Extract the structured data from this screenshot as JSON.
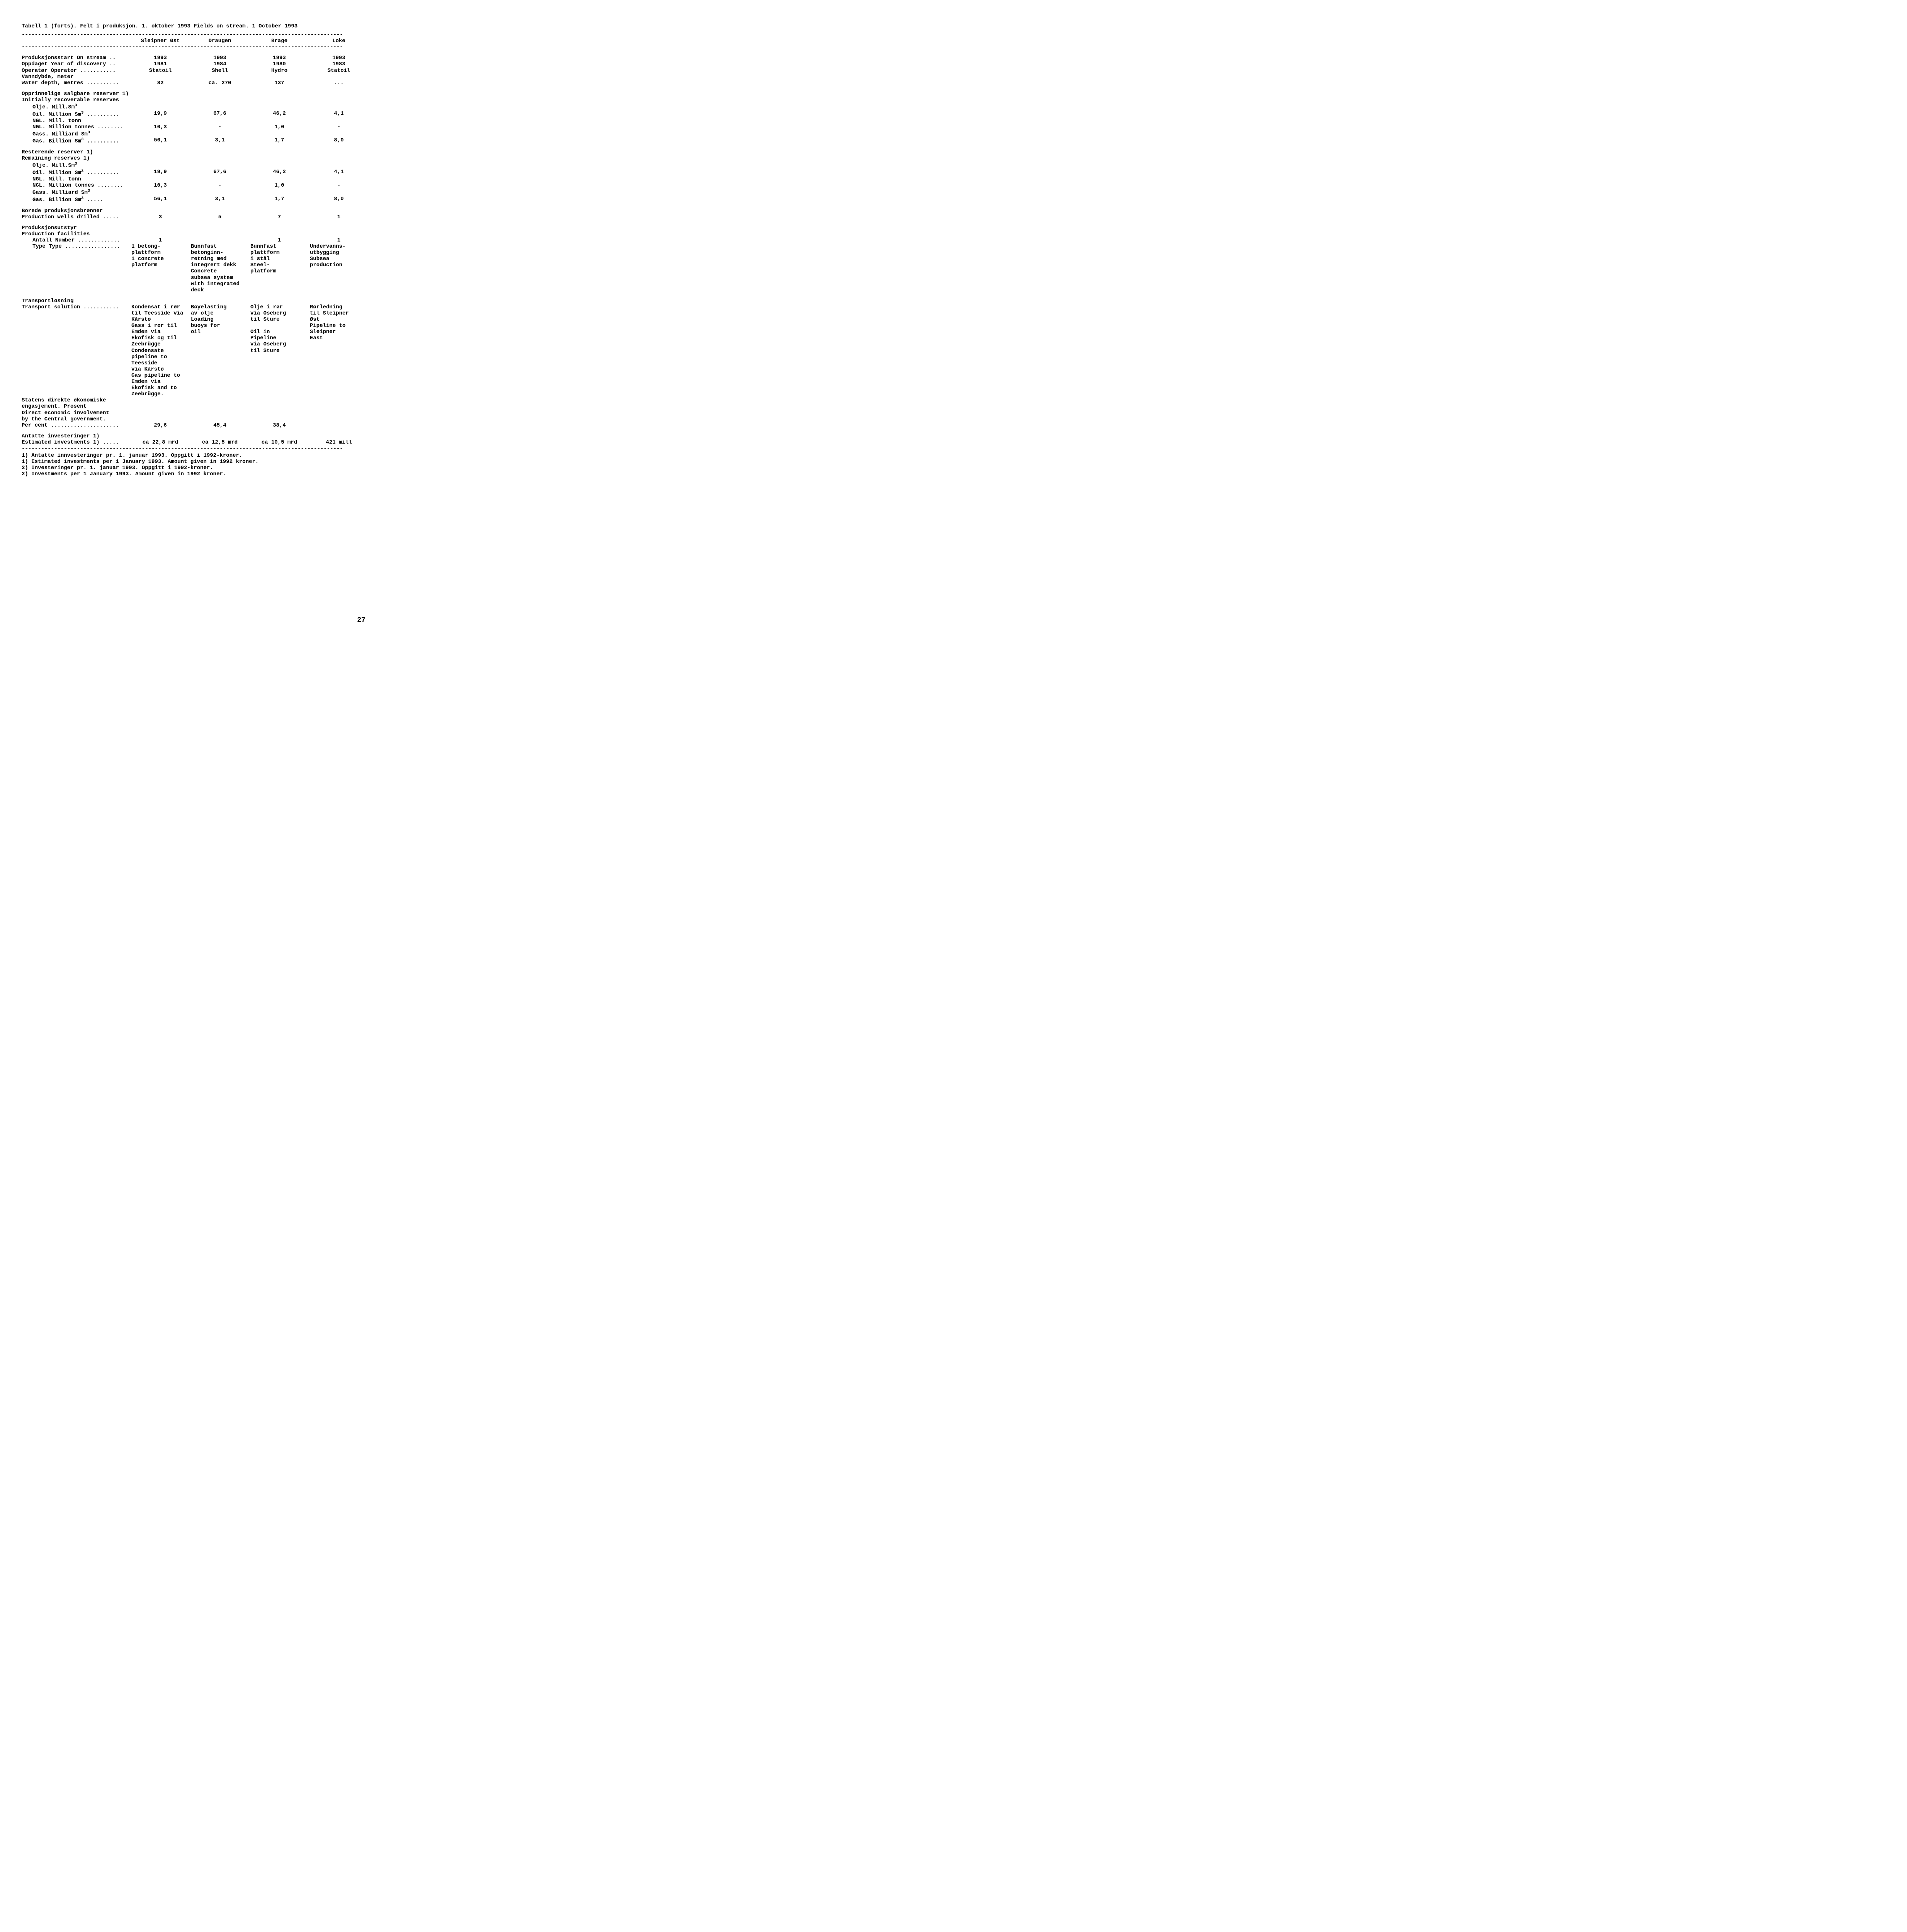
{
  "page_number": "27",
  "title": "Tabell 1 (forts).  Felt i produksjon. 1. oktober 1993  Fields on stream. 1 October 1993",
  "rule": "---------------------------------------------------------------------------------------------------",
  "headers": {
    "col1": "Sleipner Øst",
    "col2": "Draugen",
    "col3": "Brage",
    "col4": "Loke"
  },
  "rows": {
    "on_stream_lbl": "Produksjonsstart  On stream ..",
    "on_stream": {
      "c1": "1993",
      "c2": "1993",
      "c3": "1993",
      "c4": "1993"
    },
    "discovery_lbl": "Oppdaget  Year of discovery ..",
    "discovery": {
      "c1": "1981",
      "c2": "1984",
      "c3": "1980",
      "c4": "1983"
    },
    "operator_lbl": "Operatør  Operator ...........",
    "operator": {
      "c1": "Statoil",
      "c2": "Shell",
      "c3": "Hydro",
      "c4": "Statoil"
    },
    "depth_no": "Vanndybde, meter",
    "depth_lbl": "Water depth, metres ..........",
    "depth": {
      "c1": "82",
      "c2": "ca. 270",
      "c3": "137",
      "c4": "..."
    },
    "init_reserves_no": "Opprinnelige salgbare reserver 1)",
    "init_reserves_en": "Initially recoverable reserves",
    "oil_no": "Olje. Mill.Sm",
    "oil_lbl": "Oil. Million Sm",
    "oil_dots": " ..........",
    "oil_init": {
      "c1": "19,9",
      "c2": "67,6",
      "c3": "46,2",
      "c4": "4,1"
    },
    "ngl_no": "NGL. Mill. tonn",
    "ngl_lbl": "NGL. Million tonnes ........",
    "ngl_init": {
      "c1": "10,3",
      "c2": "-",
      "c3": "1,0",
      "c4": "-"
    },
    "gas_no": "Gass. Milliard Sm",
    "gas_lbl": "Gas. Billion Sm",
    "gas_dots": " ..........",
    "gas_init": {
      "c1": "56,1",
      "c2": "3,1",
      "c3": "1,7",
      "c4": "8,0"
    },
    "rem_reserves_no": "Resterende reserver 1)",
    "rem_reserves_en": "Remaining reserves 1)",
    "oil_rem": {
      "c1": "19,9",
      "c2": "67,6",
      "c3": "46,2",
      "c4": "4,1"
    },
    "ngl_rem": {
      "c1": "10,3",
      "c2": "-",
      "c3": "1,0",
      "c4": "-"
    },
    "gas_rem_dots": " .....",
    "gas_rem": {
      "c1": "56,1",
      "c2": "3,1",
      "c3": "1,7",
      "c4": "8,0"
    },
    "wells_no": "Borede produksjonsbrønner",
    "wells_lbl": "Production wells drilled .....",
    "wells": {
      "c1": "3",
      "c2": "5",
      "c3": "7",
      "c4": "1"
    },
    "facil_no": "Produksjonsutstyr",
    "facil_en": "Production facilities",
    "num_lbl": "Antall  Number .............",
    "num": {
      "c1": "1",
      "c2": "",
      "c3": "1",
      "c4": "1"
    },
    "type_lbl": "Type  Type .................",
    "type": {
      "c1": "1 betong-\nplattform\n1 concrete\nplatform",
      "c2": "Bunnfast\nbetonginn-\nretning med\nintegrert dekk\nConcrete\nsubsea system\nwith integrated\ndeck",
      "c3": "Bunnfast\nplattform\ni stål\nSteel-\nplatform",
      "c4": "Undervanns-\nutbygging\nSubsea\nproduction"
    },
    "trans_no": "Transportløsning",
    "trans_lbl": "Transport solution ...........",
    "trans": {
      "c1": "Kondensat i rør\ntil Teesside via\nKårstø\nGass i rør til\nEmden via\nEkofisk og til\nZeebrügge\nCondensate\npipeline to\nTeesside\nvia Kårstø\nGas pipeline to\nEmden via\nEkofisk and to\nZeebrügge.",
      "c2": "Bøyelasting\nav olje\nLoading\nbuoys for\noil",
      "c3": "Olje i rør\nvia Oseberg\ntil Sture\n\nOil in\nPipeline\nvia Oseberg\ntil Sture",
      "c4": "Rørledning\ntil Sleipner\nØst\nPipeline to\nSleipner\nEast"
    },
    "gov1": "Statens direkte økonomiske",
    "gov2": "engasjement. Prosent",
    "gov3": "Direct economic involvement",
    "gov4": "by the Central government.",
    "gov_lbl": "Per cent .....................",
    "gov": {
      "c1": "29,6",
      "c2": "45,4",
      "c3": "38,4",
      "c4": ""
    },
    "inv_no": "Antatte investeringer 1)",
    "inv_lbl": "Estimated investments 1)   .....",
    "inv": {
      "c1": "ca 22,8 mrd",
      "c2": "ca  12,5 mrd",
      "c3": "ca  10,5 mrd",
      "c4": "421 mill"
    }
  },
  "footnotes": [
    "1) Antatte innvesteringer pr. 1. januar 1993.  Oppgitt i 1992-kroner.",
    "1) Estimated investments per 1 January 1993.  Amount given in 1992 kroner.",
    "2) Investeringer pr. 1. januar 1993.  Oppgitt i 1992-kroner.",
    "2) Investments per 1 January 1993.  Amount given in 1992 kroner."
  ]
}
